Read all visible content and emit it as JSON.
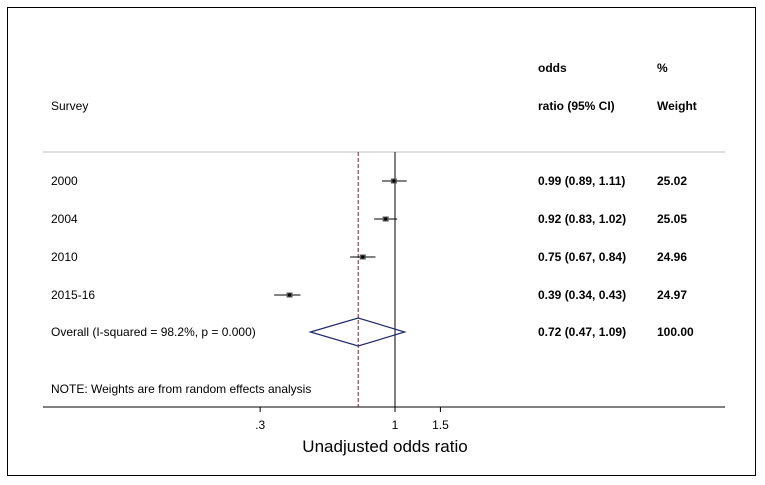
{
  "chart_data": {
    "type": "forest",
    "title": "",
    "xlabel": "Unadjusted odds ratio",
    "x_scale": "log",
    "x_ticks": [
      0.3,
      1,
      1.5
    ],
    "x_tick_labels": [
      ".3",
      "1",
      "1.5"
    ],
    "null_line": 1,
    "overall_line": 0.72,
    "headers": {
      "study": "Survey",
      "or_line1": "odds",
      "or_line2": "ratio (95% CI)",
      "weight_line1": "%",
      "weight_line2": "Weight"
    },
    "studies": [
      {
        "label": "2000",
        "or": 0.99,
        "lo": 0.89,
        "hi": 1.11,
        "ci_text": "0.99 (0.89, 1.11)",
        "weight_text": "25.02"
      },
      {
        "label": "2004",
        "or": 0.92,
        "lo": 0.83,
        "hi": 1.02,
        "ci_text": "0.92 (0.83, 1.02)",
        "weight_text": "25.05"
      },
      {
        "label": "2010",
        "or": 0.75,
        "lo": 0.67,
        "hi": 0.84,
        "ci_text": "0.75 (0.67, 0.84)",
        "weight_text": "24.96"
      },
      {
        "label": "2015-16",
        "or": 0.39,
        "lo": 0.34,
        "hi": 0.43,
        "ci_text": "0.39 (0.34, 0.43)",
        "weight_text": "24.97"
      }
    ],
    "overall": {
      "label": "Overall  (I-squared = 98.2%, p = 0.000)",
      "or": 0.72,
      "lo": 0.47,
      "hi": 1.09,
      "ci_text": "0.72 (0.47, 1.09)",
      "weight_text": "100.00"
    },
    "note": "NOTE: Weights are from random effects analysis",
    "colors": {
      "overall_line": "#8b1a1a",
      "diamond": "#1f2a6b",
      "text": "#000000"
    }
  }
}
